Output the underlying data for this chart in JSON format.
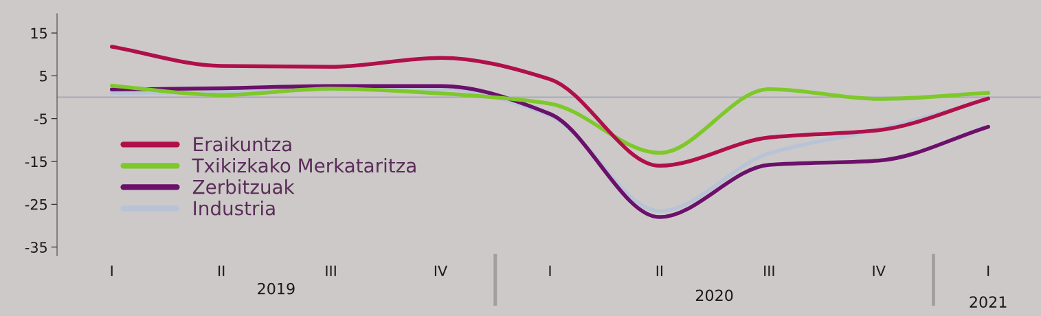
{
  "chart_data": {
    "type": "line",
    "categories": [
      "I",
      "II",
      "III",
      "IV",
      "I",
      "II",
      "III",
      "IV",
      "I"
    ],
    "series": [
      {
        "name": "Eraikuntza",
        "color": "#b0104a",
        "values": [
          11.8,
          7.3,
          7.1,
          9.2,
          4.2,
          -16.0,
          -9.4,
          -7.7,
          -0.3
        ]
      },
      {
        "name": "Txikizkako Merkataritza",
        "color": "#7ec82a",
        "values": [
          2.7,
          0.5,
          2.0,
          0.9,
          -1.5,
          -13.0,
          1.9,
          -0.4,
          1.0
        ]
      },
      {
        "name": "Zerbitzuak",
        "color": "#6b106b",
        "values": [
          1.8,
          2.1,
          2.6,
          2.6,
          -3.9,
          -28.0,
          -15.8,
          -14.8,
          -6.9
        ]
      },
      {
        "name": "Industria",
        "color": "#b8c4d6",
        "values": [
          1.0,
          1.2,
          1.8,
          2.0,
          -4.3,
          -26.6,
          -13.1,
          -7.5,
          -0.5
        ]
      }
    ],
    "ylim": [
      -37,
      19.5
    ],
    "yticks": [
      15,
      5,
      -5,
      -15,
      -25,
      -35
    ],
    "ref_lines": [
      {
        "axis": "y",
        "value": 0,
        "color": "#a8aab8"
      }
    ],
    "annotations": [
      "2019",
      "2020",
      "2021"
    ],
    "legend": "bottom left",
    "grid": false,
    "marker": "none",
    "line_style": "solid"
  }
}
